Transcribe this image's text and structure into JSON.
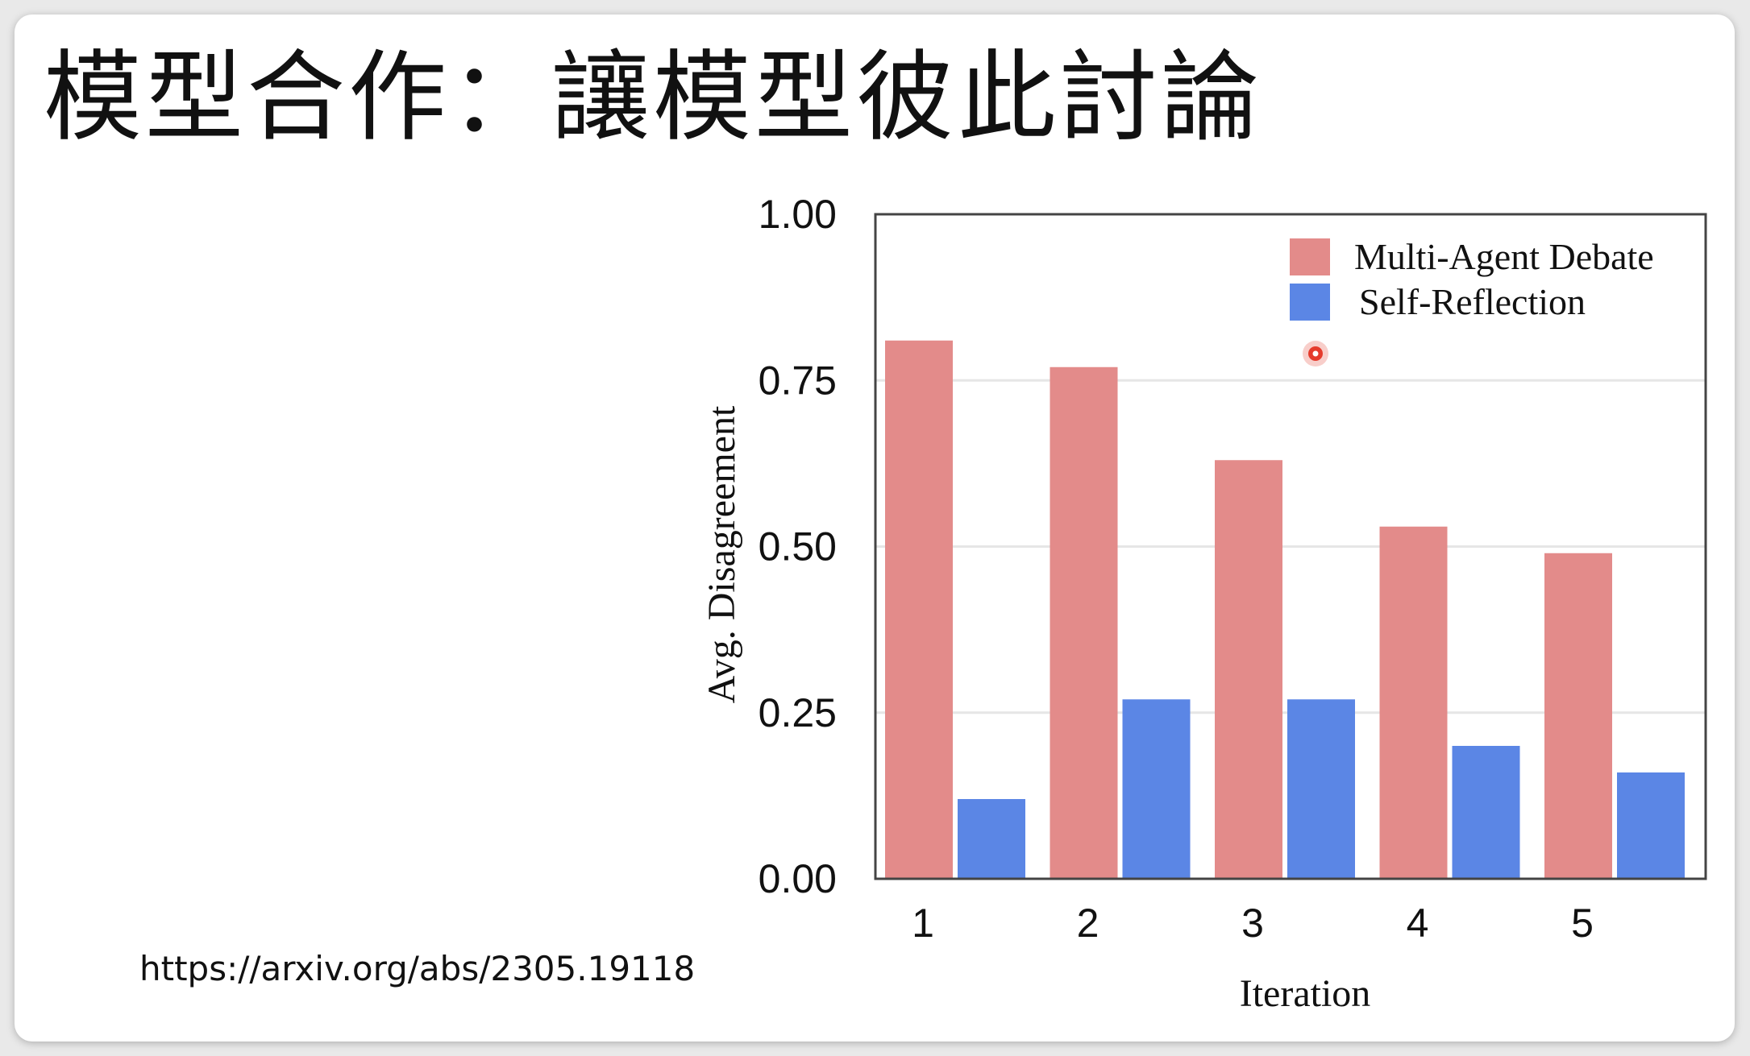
{
  "slide": {
    "title": "模型合作：讓模型彼此討論",
    "source_link": "https://arxiv.org/abs/2305.19118"
  },
  "colors": {
    "multi_agent": "#e38b8a",
    "self_reflection": "#5b86e5",
    "cursor": "#e53b2c"
  },
  "chart_data": {
    "type": "bar",
    "categories": [
      "1",
      "2",
      "3",
      "4",
      "5"
    ],
    "series": [
      {
        "name": "Multi-Agent Debate",
        "values": [
          0.81,
          0.77,
          0.63,
          0.53,
          0.49
        ]
      },
      {
        "name": "Self-Reflection",
        "values": [
          0.12,
          0.27,
          0.27,
          0.2,
          0.16
        ]
      }
    ],
    "xlabel": "Iteration",
    "ylabel": "Avg. Disagreement",
    "ylim": [
      0,
      1.0
    ],
    "yticks": [
      "0.00",
      "0.25",
      "0.50",
      "0.75",
      "1.00"
    ],
    "grid": true,
    "legend_position": "top-right"
  }
}
